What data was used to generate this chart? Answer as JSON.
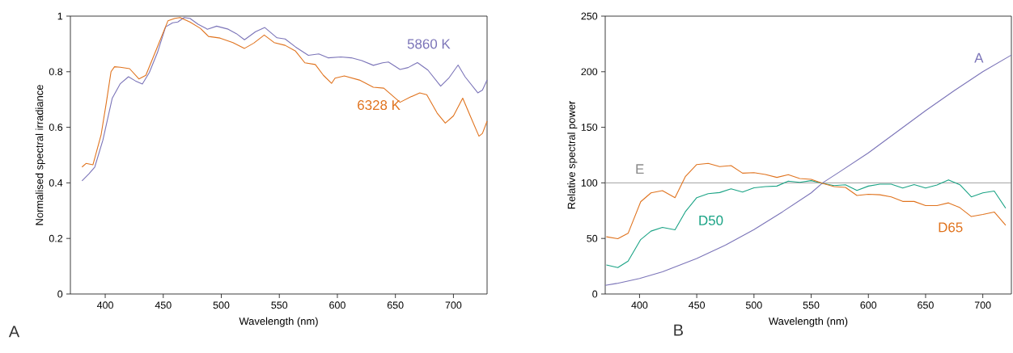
{
  "chart_data": [
    {
      "type": "line",
      "xlabel": "Wavelength (nm)",
      "ylabel": "Normalised spectral irradiance",
      "xlim": [
        370,
        729
      ],
      "ylim": [
        0,
        1
      ],
      "xticks": [
        400,
        450,
        500,
        550,
        600,
        650,
        700
      ],
      "yticks": [
        0,
        0.2,
        0.4,
        0.6,
        0.8,
        1
      ],
      "annotations": [
        "A"
      ],
      "series": [
        {
          "name": "5860 K",
          "color": "#7b74b8",
          "x": [
            380,
            386,
            391,
            398,
            406,
            413,
            420,
            426,
            432,
            438,
            445,
            452,
            458,
            462.5,
            468,
            473,
            480,
            488,
            496,
            506,
            513,
            520,
            529.5,
            537.5,
            548,
            555,
            564,
            575,
            584,
            592,
            603,
            612,
            621,
            631,
            639,
            644,
            654,
            661,
            669,
            678,
            689,
            696,
            704,
            710,
            721,
            725,
            729
          ],
          "values": [
            0.407,
            0.433,
            0.457,
            0.554,
            0.704,
            0.757,
            0.782,
            0.767,
            0.756,
            0.797,
            0.869,
            0.961,
            0.976,
            0.979,
            0.995,
            0.992,
            0.971,
            0.953,
            0.964,
            0.953,
            0.937,
            0.915,
            0.944,
            0.959,
            0.922,
            0.918,
            0.889,
            0.859,
            0.864,
            0.85,
            0.853,
            0.85,
            0.84,
            0.823,
            0.832,
            0.835,
            0.808,
            0.815,
            0.833,
            0.806,
            0.748,
            0.777,
            0.824,
            0.782,
            0.724,
            0.734,
            0.77
          ]
        },
        {
          "name": "6328 K",
          "color": "#e0731e",
          "x": [
            380,
            383.5,
            389.4,
            396.5,
            401,
            405,
            408,
            413,
            421,
            429,
            435,
            443,
            454,
            460,
            464.5,
            473,
            482,
            489,
            499,
            510,
            520,
            528,
            537,
            545.5,
            555,
            564,
            572,
            581,
            588,
            595,
            598,
            606,
            619,
            631,
            640,
            654,
            663,
            671,
            677,
            686,
            693,
            700,
            708,
            715,
            722,
            725,
            729
          ],
          "values": [
            0.457,
            0.47,
            0.465,
            0.574,
            0.69,
            0.8,
            0.818,
            0.816,
            0.811,
            0.774,
            0.787,
            0.869,
            0.983,
            0.992,
            0.995,
            0.979,
            0.956,
            0.927,
            0.921,
            0.905,
            0.884,
            0.903,
            0.932,
            0.905,
            0.895,
            0.874,
            0.832,
            0.826,
            0.787,
            0.758,
            0.777,
            0.785,
            0.77,
            0.744,
            0.741,
            0.69,
            0.709,
            0.724,
            0.717,
            0.651,
            0.615,
            0.641,
            0.705,
            0.636,
            0.568,
            0.578,
            0.622
          ]
        }
      ]
    },
    {
      "type": "line",
      "xlabel": "Wavelength (nm)",
      "ylabel": "Relative spectral power",
      "xlim": [
        370,
        725
      ],
      "ylim": [
        0,
        250
      ],
      "xticks": [
        400,
        450,
        500,
        550,
        600,
        650,
        700
      ],
      "yticks": [
        0,
        50,
        100,
        150,
        200,
        250
      ],
      "annotations": [
        "B"
      ],
      "ref_lines": [
        {
          "axis": "y",
          "value": 100,
          "label": "E",
          "color": "#8a8a8a"
        }
      ],
      "series": [
        {
          "name": "A",
          "color": "#7b74b8",
          "x": [
            370,
            380,
            400,
            420,
            450,
            475,
            500,
            525,
            550,
            560,
            575,
            600,
            625,
            650,
            675,
            700,
            725
          ],
          "values": [
            7.8,
            9.5,
            14,
            20,
            32,
            44,
            58,
            74,
            91,
            100,
            110,
            127,
            146,
            165,
            183,
            200,
            215
          ]
        },
        {
          "name": "D50",
          "color": "#1aa385",
          "x": [
            371,
            381,
            390,
            401,
            410,
            420,
            431,
            440,
            450,
            460,
            470,
            480,
            490,
            500,
            510,
            520,
            530,
            540,
            550,
            560,
            570,
            580,
            590,
            600,
            610,
            620,
            630,
            640,
            650,
            660,
            670,
            680,
            690,
            700,
            710,
            720
          ],
          "values": [
            26.2,
            23.8,
            29.6,
            49,
            56.6,
            60,
            57.8,
            74,
            86.7,
            90.3,
            91.3,
            94.7,
            91.7,
            95.6,
            96.6,
            97.1,
            101.5,
            100.5,
            102,
            99.5,
            97.6,
            98.3,
            93.2,
            97.1,
            98.8,
            98.8,
            95.4,
            98.5,
            95.4,
            98.1,
            102.7,
            98.3,
            87.4,
            91,
            92.7,
            77.2
          ]
        },
        {
          "name": "D65",
          "color": "#e0731e",
          "x": [
            371,
            381,
            390,
            401,
            410,
            420,
            431,
            440,
            450,
            460,
            470,
            480,
            490,
            500,
            510,
            520,
            530,
            540,
            550,
            560,
            570,
            580,
            590,
            600,
            610,
            620,
            630,
            640,
            650,
            660,
            670,
            680,
            690,
            700,
            710,
            720
          ],
          "values": [
            51.5,
            49.8,
            54.6,
            83,
            91,
            93,
            86.7,
            105.6,
            116.5,
            117.5,
            114.6,
            115.5,
            108.7,
            109.2,
            107.5,
            104.9,
            107.3,
            103.9,
            103.2,
            99.5,
            96.6,
            95.9,
            88.6,
            89.8,
            89.3,
            87.4,
            83.3,
            83.3,
            79.6,
            79.6,
            82,
            77.7,
            69.7,
            71.6,
            73.8,
            61.9
          ]
        }
      ]
    }
  ]
}
